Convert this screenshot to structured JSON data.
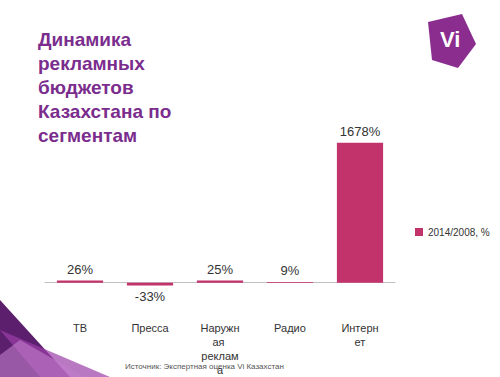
{
  "chart_data": {
    "type": "bar",
    "title": "Динамика рекламных бюджетов Казахстана по сегментам",
    "logo": "Vi",
    "source": "Источник: Экспертная оценка Vi Казахстан",
    "categories": [
      "ТВ",
      "Пресса",
      "Наружная реклама",
      "Радио",
      "Интернет"
    ],
    "series": [
      {
        "name": "2014/2008, %",
        "color": "#c2326b",
        "values": [
          26,
          -33,
          25,
          9,
          1678
        ],
        "value_labels": [
          "26%",
          "-33%",
          "25%",
          "9%",
          "1678%"
        ]
      }
    ],
    "ylim": [
      -100,
      2000
    ],
    "data_labels": true,
    "tick_labels": "x",
    "grid": false,
    "legend": "right"
  }
}
